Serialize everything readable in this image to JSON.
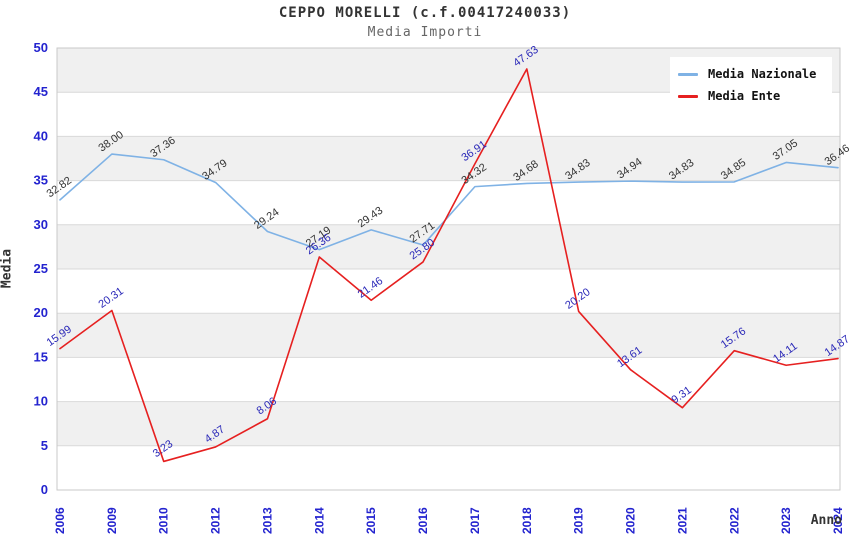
{
  "header": {
    "title": "CEPPO MORELLI (c.f.00417240033)",
    "subtitle": "Media Importi"
  },
  "axes": {
    "y_label": "Media",
    "x_label": "Anno"
  },
  "colors": {
    "nazionale_line": "#7FB2E5",
    "ente_line": "#E62020",
    "tick_label": "#2323CF",
    "nazionale_point_label": "#333333",
    "ente_point_label": "#2A28B8",
    "band_gray": "#F0F0F0",
    "gridline": "#D9D9D9",
    "plot_border": "#C9C9C9"
  },
  "chart_data": {
    "type": "line",
    "title": "CEPPO MORELLI (c.f.00417240033)",
    "subtitle": "Media Importi",
    "xlabel": "Anno",
    "ylabel": "Media",
    "categories": [
      "2006",
      "2009",
      "2010",
      "2012",
      "2013",
      "2014",
      "2015",
      "2016",
      "2017",
      "2018",
      "2019",
      "2020",
      "2021",
      "2022",
      "2023",
      "2024"
    ],
    "series": [
      {
        "name": "Media Nazionale",
        "color": "#7FB2E5",
        "label_color": "#333333",
        "values": [
          32.82,
          38.0,
          37.36,
          34.79,
          29.24,
          27.19,
          29.43,
          27.71,
          34.32,
          34.68,
          34.83,
          34.94,
          34.83,
          34.85,
          37.05,
          36.46
        ]
      },
      {
        "name": "Media Ente",
        "color": "#E62020",
        "label_color": "#2A28B8",
        "values": [
          15.99,
          20.31,
          3.23,
          4.87,
          8.06,
          26.36,
          21.46,
          25.8,
          36.91,
          47.63,
          20.2,
          13.61,
          9.31,
          15.76,
          14.11,
          14.87
        ]
      }
    ],
    "ylim": [
      0,
      50
    ],
    "y_ticks": [
      0,
      5,
      10,
      15,
      20,
      25,
      30,
      35,
      40,
      45,
      50
    ],
    "grid": "horizontal gridlines with alternating gray bands every 5 units",
    "legend_position": "top-right",
    "point_labels": "each point labeled with value to 2 decimals, rotated ~-35deg"
  }
}
